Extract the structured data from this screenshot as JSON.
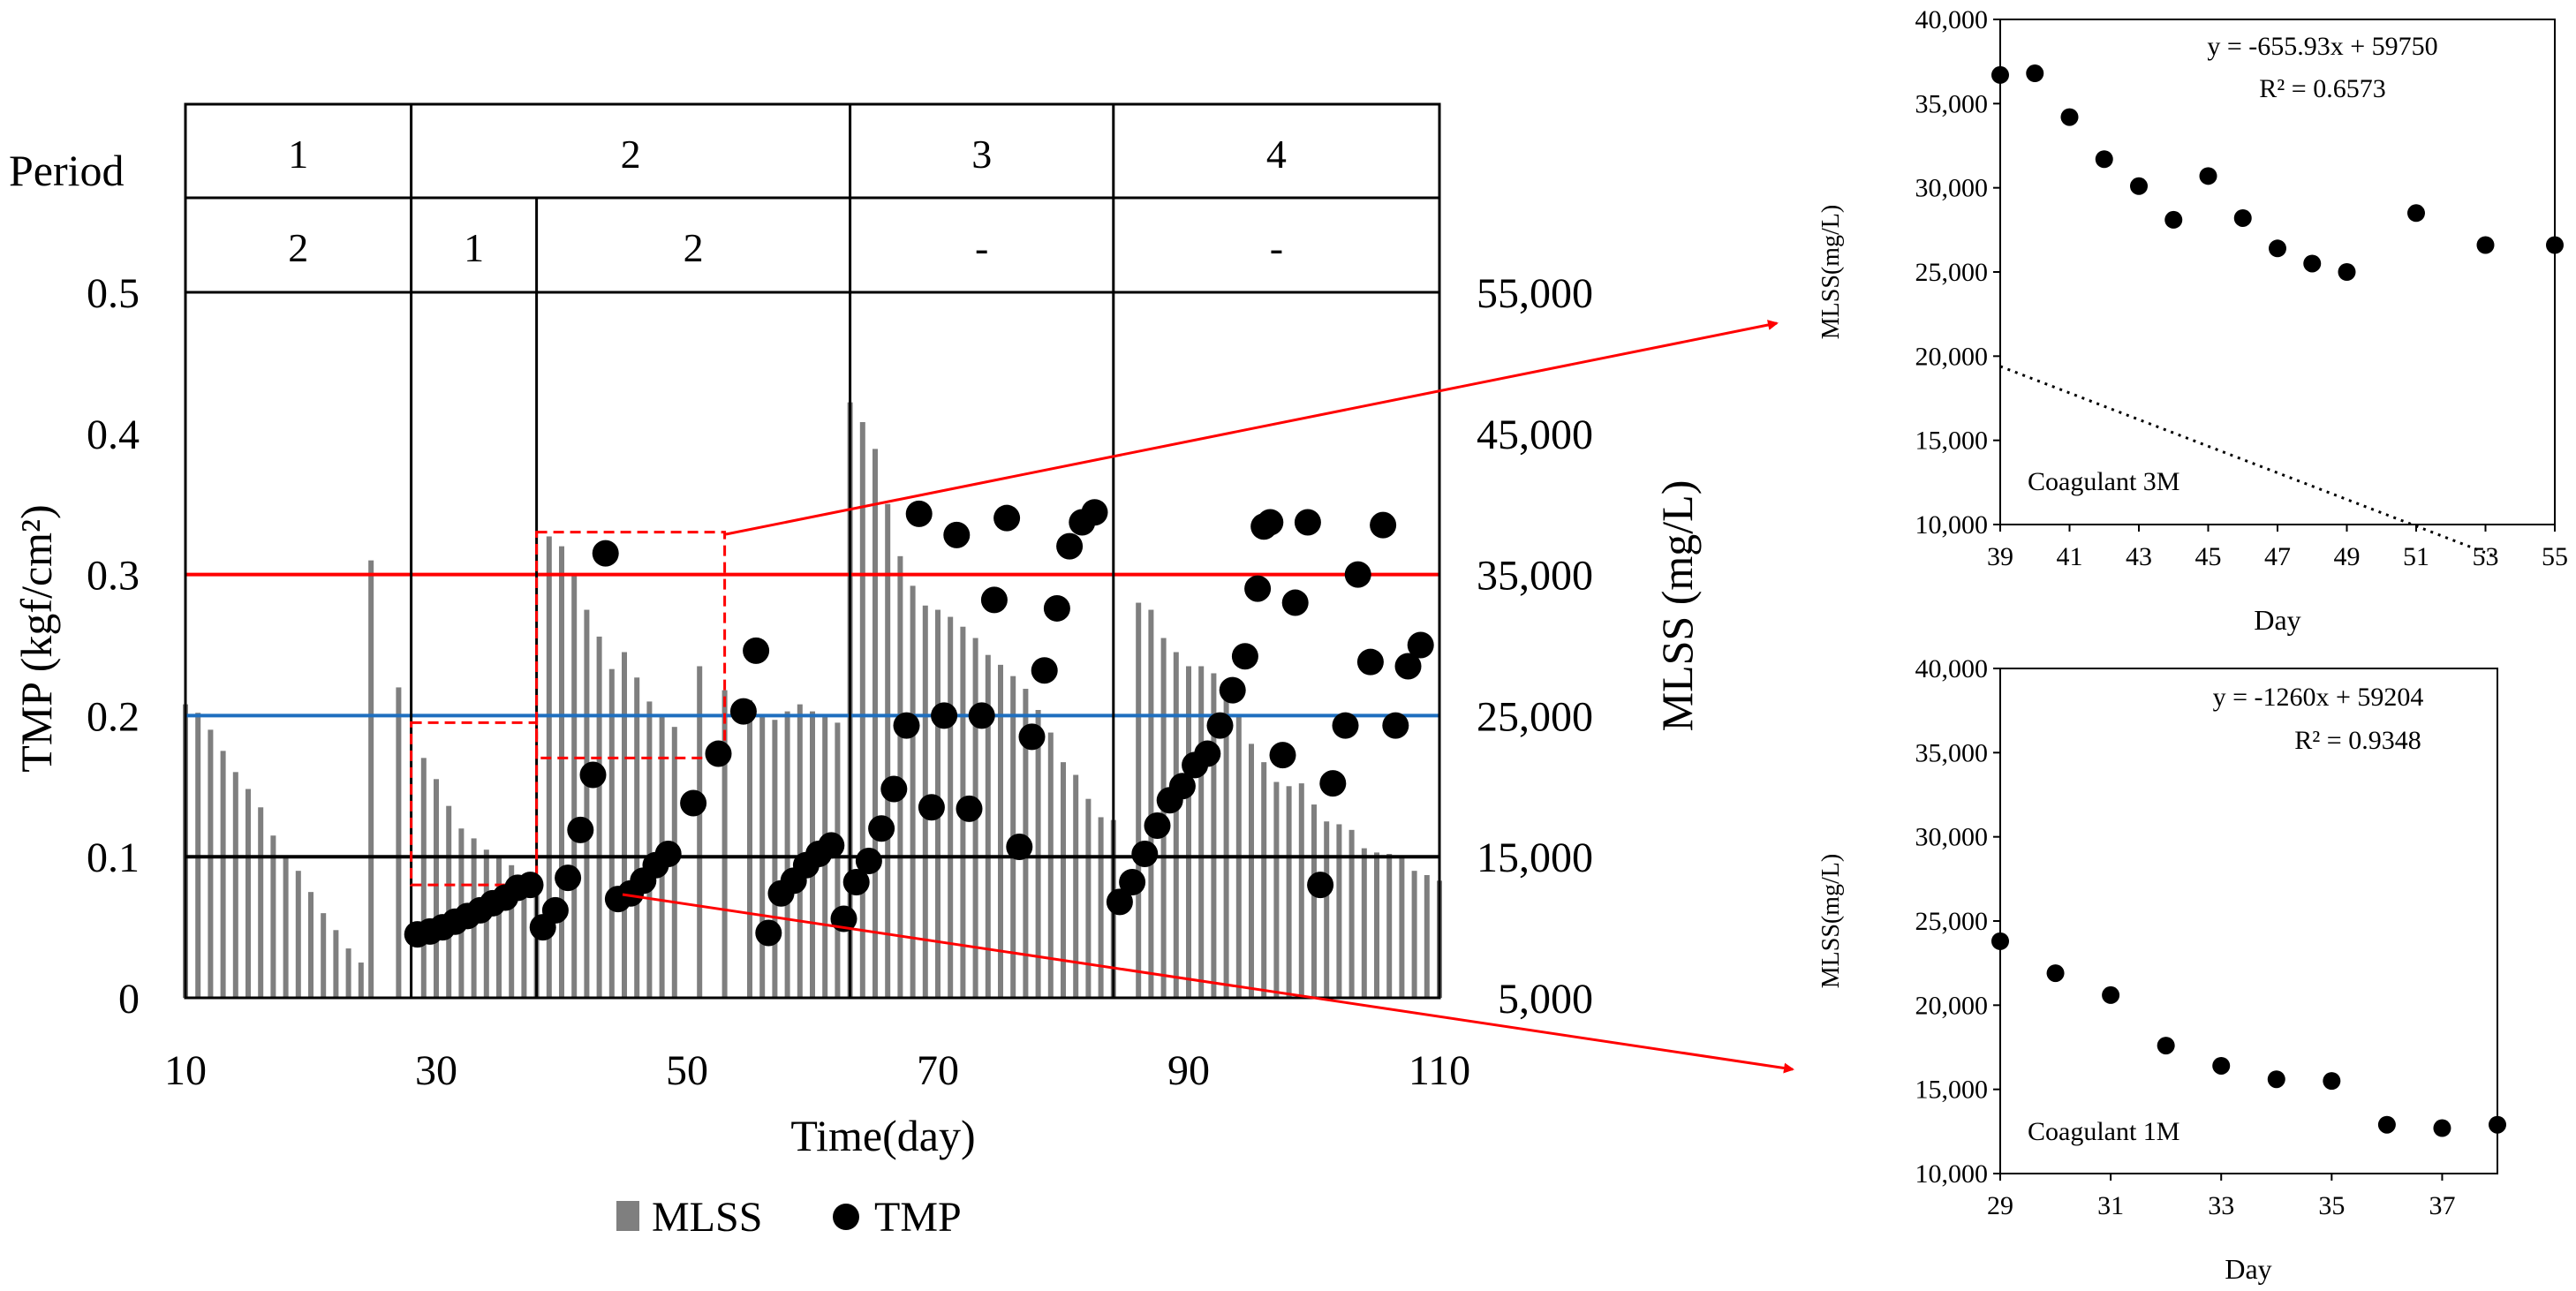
{
  "chart_data": [
    {
      "type": "bar+scatter",
      "title": "",
      "xlabel": "Time(day)",
      "ylabel_left": "TMP (kgf/cm²)",
      "ylabel_right": "MLSS (mg/L)",
      "xlim": [
        10,
        110
      ],
      "xticks": [
        "10",
        "30",
        "50",
        "70",
        "90",
        "110"
      ],
      "ylim_left": [
        0,
        0.5
      ],
      "yticks_left": [
        "0",
        "0.1",
        "0.2",
        "0.3",
        "0.4",
        "0.5"
      ],
      "ylim_right": [
        5000,
        55000
      ],
      "yticks_right": [
        "5,000",
        "15,000",
        "25,000",
        "35,000",
        "45,000",
        "55,000"
      ],
      "legend": {
        "placement": "bottom-center",
        "items": [
          "MLSS",
          "TMP"
        ]
      },
      "period_table": {
        "row1_label": "Period",
        "row1": [
          {
            "label": "1",
            "from": 10,
            "to": 28
          },
          {
            "label": "2",
            "from": 28,
            "to": 63
          },
          {
            "label": "3",
            "from": 63,
            "to": 84
          },
          {
            "label": "4",
            "from": 84,
            "to": 110
          }
        ],
        "row2": [
          {
            "label": "2",
            "from": 10,
            "to": 28
          },
          {
            "label": "1",
            "from": 28,
            "to": 38
          },
          {
            "label": "2",
            "from": 38,
            "to": 63
          },
          {
            "label": "-",
            "from": 63,
            "to": 84
          },
          {
            "label": "-",
            "from": 84,
            "to": 110
          }
        ]
      },
      "vertical_lines_day": [
        28,
        38,
        63,
        84
      ],
      "reference_lines": [
        {
          "axis": "left",
          "value": 0.3,
          "color": "#ff0000"
        },
        {
          "axis": "left",
          "value": 0.2,
          "color": "#1f6fbf"
        },
        {
          "axis": "left",
          "value": 0.1,
          "color": "#000000"
        }
      ],
      "highlight_boxes": [
        {
          "x": [
            28,
            38
          ],
          "y_left": [
            0.08,
            0.195
          ]
        },
        {
          "x": [
            38,
            53
          ],
          "y_left": [
            0.17,
            0.33
          ]
        }
      ],
      "series": [
        {
          "name": "MLSS",
          "kind": "bar",
          "axis": "right",
          "color": "#7f7f7f",
          "points": [
            [
              10,
              25800
            ],
            [
              11,
              25200
            ],
            [
              12,
              24000
            ],
            [
              13,
              22500
            ],
            [
              14,
              21000
            ],
            [
              15,
              19800
            ],
            [
              16,
              18500
            ],
            [
              17,
              16500
            ],
            [
              18,
              15000
            ],
            [
              19,
              14000
            ],
            [
              20,
              12500
            ],
            [
              21,
              11000
            ],
            [
              22,
              9800
            ],
            [
              23,
              8500
            ],
            [
              24,
              7500
            ],
            [
              24.8,
              36000
            ],
            [
              27,
              27000
            ],
            [
              29,
              22000
            ],
            [
              30,
              20500
            ],
            [
              31,
              18600
            ],
            [
              32,
              17000
            ],
            [
              33,
              16300
            ],
            [
              34,
              15500
            ],
            [
              35,
              15000
            ],
            [
              36,
              14400
            ],
            [
              37,
              13300
            ],
            [
              38,
              12500
            ],
            [
              39,
              37700
            ],
            [
              40,
              37000
            ],
            [
              41,
              35000
            ],
            [
              42,
              32500
            ],
            [
              43,
              30600
            ],
            [
              44,
              28300
            ],
            [
              45,
              29500
            ],
            [
              46,
              27700
            ],
            [
              47,
              26000
            ],
            [
              48,
              25000
            ],
            [
              49,
              24200
            ],
            [
              51,
              28500
            ],
            [
              53,
              26800
            ],
            [
              55,
              26100
            ],
            [
              56,
              25000
            ],
            [
              57,
              24700
            ],
            [
              58,
              25300
            ],
            [
              59,
              25800
            ],
            [
              60,
              25300
            ],
            [
              61,
              25000
            ],
            [
              62,
              24500
            ],
            [
              63,
              47200
            ],
            [
              64,
              45800
            ],
            [
              65,
              43900
            ],
            [
              66,
              40000
            ],
            [
              67,
              36300
            ],
            [
              68,
              34200
            ],
            [
              69,
              32800
            ],
            [
              70,
              32500
            ],
            [
              71,
              32000
            ],
            [
              72,
              31300
            ],
            [
              73,
              30500
            ],
            [
              74,
              29300
            ],
            [
              75,
              28600
            ],
            [
              76,
              27800
            ],
            [
              77,
              26900
            ],
            [
              78,
              25400
            ],
            [
              79,
              23800
            ],
            [
              80,
              21700
            ],
            [
              81,
              20800
            ],
            [
              82,
              19100
            ],
            [
              83,
              17800
            ],
            [
              84,
              17600
            ],
            [
              86,
              33000
            ],
            [
              87,
              32500
            ],
            [
              88,
              30500
            ],
            [
              89,
              29500
            ],
            [
              90,
              28500
            ],
            [
              91,
              28500
            ],
            [
              92,
              28000
            ],
            [
              93,
              26800
            ],
            [
              94,
              25000
            ],
            [
              95,
              23000
            ],
            [
              96,
              21700
            ],
            [
              97,
              20300
            ],
            [
              98,
              20000
            ],
            [
              99,
              20200
            ],
            [
              100,
              18700
            ],
            [
              101,
              17500
            ],
            [
              102,
              17300
            ],
            [
              103,
              16900
            ],
            [
              104,
              15600
            ],
            [
              105,
              15300
            ],
            [
              106,
              15200
            ],
            [
              107,
              14900
            ],
            [
              108,
              14000
            ],
            [
              109,
              13700
            ],
            [
              110,
              13300
            ]
          ]
        },
        {
          "name": "TMP",
          "kind": "scatter",
          "axis": "left",
          "color": "#000000",
          "points": [
            [
              28.5,
              0.045
            ],
            [
              29.5,
              0.047
            ],
            [
              30.5,
              0.05
            ],
            [
              31.5,
              0.054
            ],
            [
              32.5,
              0.058
            ],
            [
              33.5,
              0.062
            ],
            [
              34.5,
              0.067
            ],
            [
              35.5,
              0.071
            ],
            [
              36.5,
              0.078
            ],
            [
              37.5,
              0.08
            ],
            [
              38.5,
              0.05
            ],
            [
              39.5,
              0.062
            ],
            [
              40.5,
              0.085
            ],
            [
              41.5,
              0.119
            ],
            [
              42.5,
              0.158
            ],
            [
              43.5,
              0.315
            ],
            [
              44.5,
              0.07
            ],
            [
              45.5,
              0.074
            ],
            [
              46.5,
              0.083
            ],
            [
              47.5,
              0.094
            ],
            [
              48.5,
              0.102
            ],
            [
              50.5,
              0.138
            ],
            [
              52.5,
              0.173
            ],
            [
              54.5,
              0.203
            ],
            [
              55.5,
              0.246
            ],
            [
              56.5,
              0.046
            ],
            [
              57.5,
              0.074
            ],
            [
              58.5,
              0.083
            ],
            [
              59.5,
              0.094
            ],
            [
              60.5,
              0.102
            ],
            [
              61.5,
              0.108
            ],
            [
              62.5,
              0.056
            ],
            [
              63.5,
              0.082
            ],
            [
              64.5,
              0.097
            ],
            [
              65.5,
              0.12
            ],
            [
              66.5,
              0.148
            ],
            [
              67.5,
              0.193
            ],
            [
              68.5,
              0.343
            ],
            [
              69.5,
              0.135
            ],
            [
              70.5,
              0.2
            ],
            [
              71.5,
              0.328
            ],
            [
              72.5,
              0.134
            ],
            [
              73.5,
              0.2
            ],
            [
              74.5,
              0.282
            ],
            [
              75.5,
              0.34
            ],
            [
              76.5,
              0.107
            ],
            [
              77.5,
              0.185
            ],
            [
              78.5,
              0.232
            ],
            [
              79.5,
              0.276
            ],
            [
              80.5,
              0.32
            ],
            [
              81.5,
              0.337
            ],
            [
              82.5,
              0.344
            ],
            [
              84.5,
              0.068
            ],
            [
              85.5,
              0.082
            ],
            [
              86.5,
              0.102
            ],
            [
              87.5,
              0.122
            ],
            [
              88.5,
              0.14
            ],
            [
              89.5,
              0.15
            ],
            [
              90.5,
              0.165
            ],
            [
              91.5,
              0.173
            ],
            [
              92.5,
              0.193
            ],
            [
              93.5,
              0.218
            ],
            [
              94.5,
              0.242
            ],
            [
              95.5,
              0.29
            ],
            [
              96,
              0.334
            ],
            [
              96.5,
              0.337
            ],
            [
              97.5,
              0.172
            ],
            [
              98.5,
              0.28
            ],
            [
              99.5,
              0.337
            ],
            [
              100.5,
              0.08
            ],
            [
              101.5,
              0.152
            ],
            [
              102.5,
              0.193
            ],
            [
              103.5,
              0.3
            ],
            [
              104.5,
              0.238
            ],
            [
              105.5,
              0.335
            ],
            [
              106.5,
              0.193
            ],
            [
              107.5,
              0.235
            ],
            [
              108.5,
              0.25
            ]
          ]
        }
      ]
    },
    {
      "type": "scatter",
      "title": "",
      "xlabel": "Day",
      "ylabel": "MLSS(mg/L)",
      "xlim": [
        39,
        55
      ],
      "xticks": [
        "39",
        "41",
        "43",
        "45",
        "47",
        "49",
        "51",
        "53",
        "55"
      ],
      "ylim": [
        10000,
        40000
      ],
      "yticks": [
        "10,000",
        "15,000",
        "20,000",
        "25,000",
        "30,000",
        "35,000",
        "40,000"
      ],
      "annotation": "Coagulant 3M",
      "equation": "y = -655.93x + 59750",
      "r2": "R² = 0.6573",
      "trend": {
        "slope": -655.93,
        "intercept": 59750,
        "x_offset": 38
      },
      "points": [
        [
          39,
          36700
        ],
        [
          40,
          36800
        ],
        [
          41,
          34200
        ],
        [
          42,
          31700
        ],
        [
          43,
          30100
        ],
        [
          44,
          28100
        ],
        [
          45,
          30700
        ],
        [
          46,
          28200
        ],
        [
          47,
          26400
        ],
        [
          48,
          25500
        ],
        [
          49,
          25000
        ],
        [
          51,
          28500
        ],
        [
          53,
          26600
        ],
        [
          55,
          26600
        ]
      ]
    },
    {
      "type": "scatter",
      "title": "",
      "xlabel": "Day",
      "ylabel": "MLSS(mg/L)",
      "xlim": [
        29,
        38
      ],
      "xticks": [
        "29",
        "31",
        "33",
        "35",
        "37"
      ],
      "ylim": [
        10000,
        40000
      ],
      "yticks": [
        "10,000",
        "15,000",
        "20,000",
        "25,000",
        "30,000",
        "35,000",
        "40,000"
      ],
      "annotation": "Coagulant 1M",
      "equation": "y = -1260x + 59204",
      "r2": "R² = 0.9348",
      "trend": {
        "slope": -1260,
        "intercept": 59204,
        "x_offset": 28
      },
      "points": [
        [
          29,
          23800
        ],
        [
          30,
          21900
        ],
        [
          31,
          20600
        ],
        [
          32,
          17600
        ],
        [
          33,
          16400
        ],
        [
          34,
          15600
        ],
        [
          35,
          15500
        ],
        [
          36,
          12900
        ],
        [
          37,
          12700
        ],
        [
          38,
          12900
        ]
      ]
    }
  ]
}
